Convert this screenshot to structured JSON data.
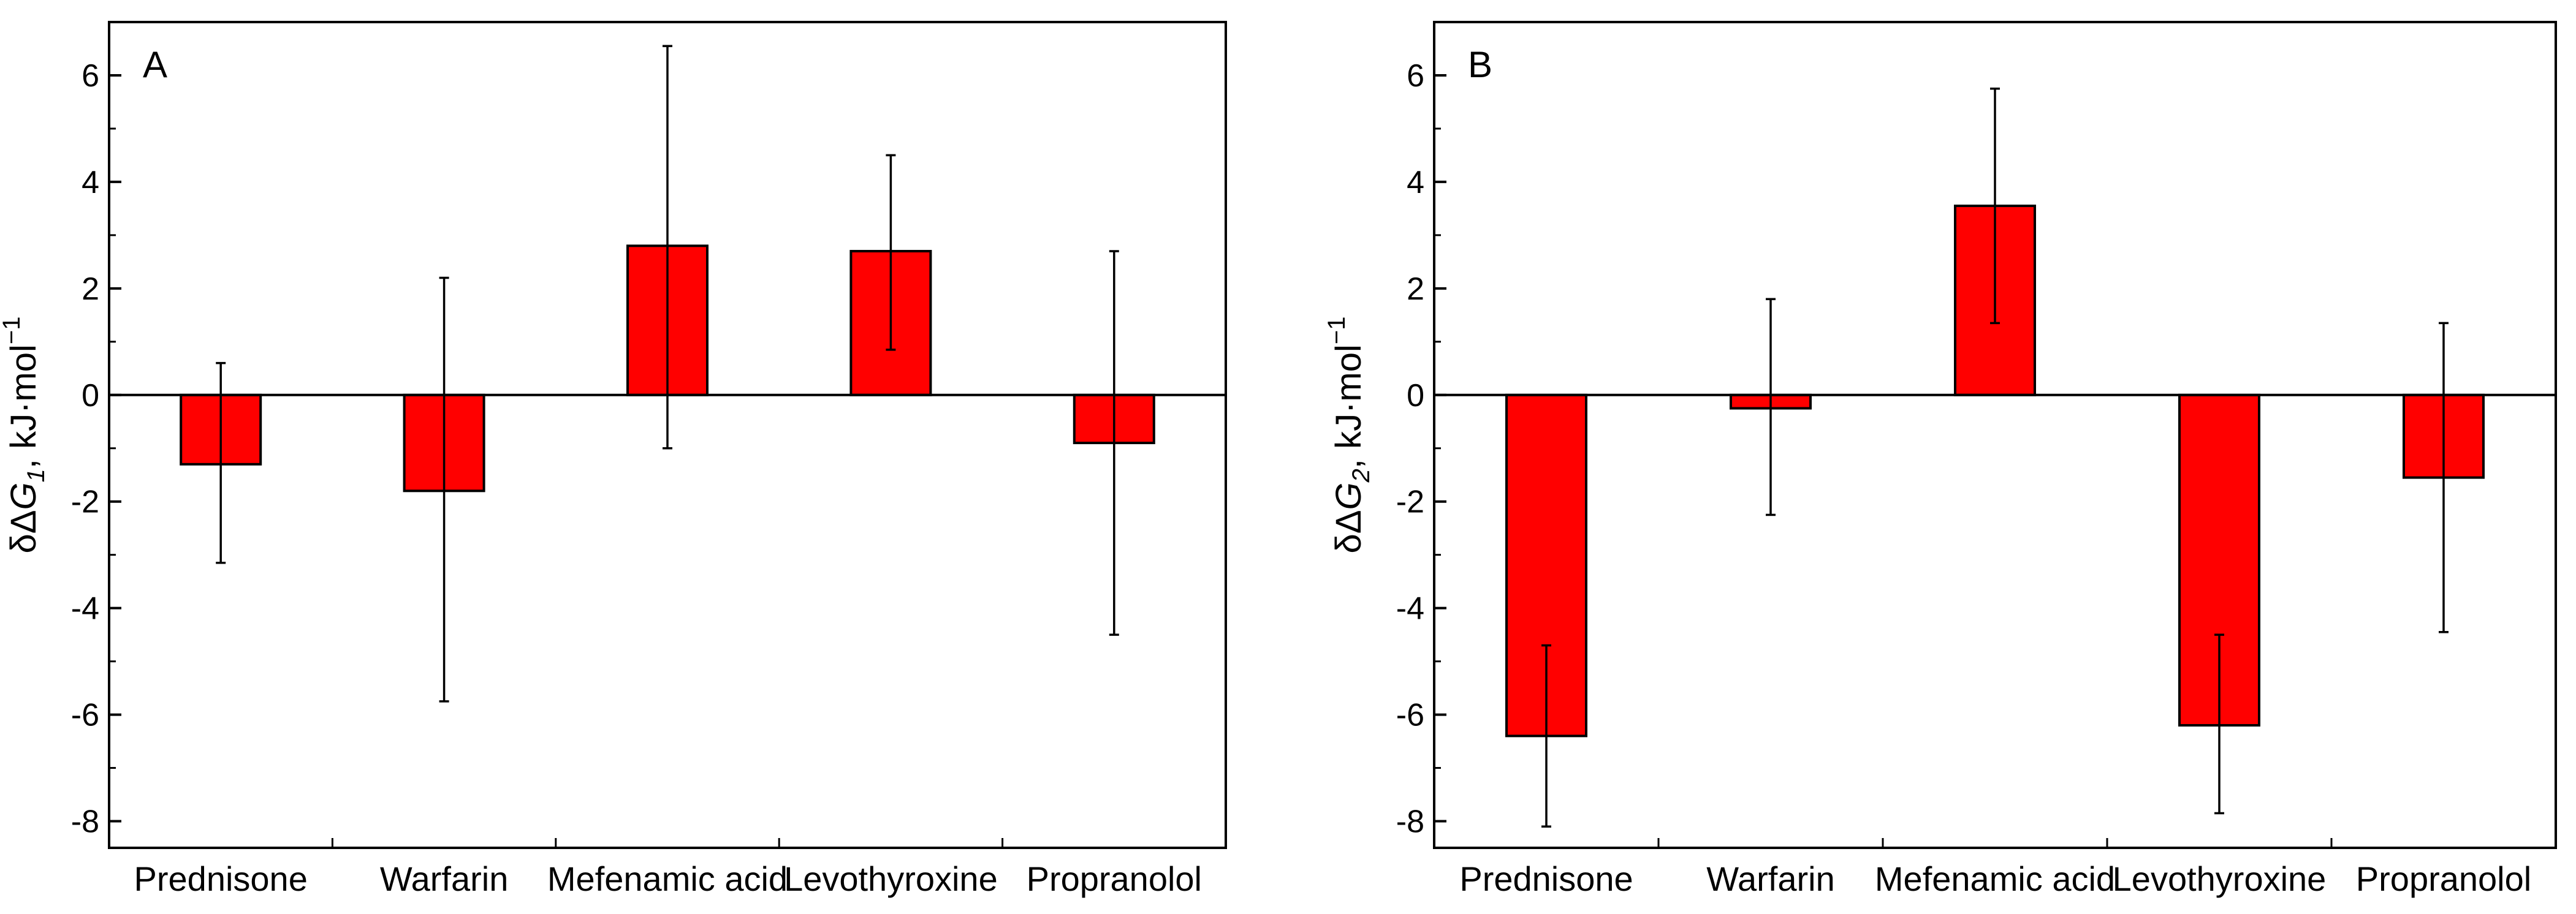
{
  "chart_data": [
    {
      "type": "bar",
      "panel_label": "A",
      "ylabel_prefix": "δΔ",
      "ylabel_symbol": "G",
      "ylabel_subscript": "1",
      "ylabel_unit": ", kJ·mol",
      "ylabel_superscript": "−1",
      "categories": [
        "Prednisone",
        "Warfarin",
        "Mefenamic acid",
        "Levothyroxine",
        "Propranolol"
      ],
      "values": [
        -1.3,
        -1.8,
        2.8,
        2.7,
        -0.9
      ],
      "error_low": [
        -3.15,
        -5.75,
        -1.0,
        0.85,
        -4.5
      ],
      "error_high": [
        0.6,
        2.2,
        6.55,
        4.5,
        2.7
      ],
      "ylim": [
        -8.5,
        7.0
      ],
      "yticks": [
        -8,
        -6,
        -4,
        -2,
        0,
        2,
        4,
        6
      ],
      "ytick_labels": [
        "-8",
        "-6",
        "-4",
        "-2",
        "0",
        "2",
        "4",
        "6"
      ],
      "bar_color": "#ff0000",
      "grid": false,
      "legend": "none"
    },
    {
      "type": "bar",
      "panel_label": "B",
      "ylabel_prefix": "δΔ",
      "ylabel_symbol": "G",
      "ylabel_subscript": "2",
      "ylabel_unit": ", kJ·mol",
      "ylabel_superscript": "−1",
      "categories": [
        "Prednisone",
        "Warfarin",
        "Mefenamic acid",
        "Levothyroxine",
        "Propranolol"
      ],
      "values": [
        -6.4,
        -0.25,
        3.55,
        -6.2,
        -1.55
      ],
      "error_low": [
        -8.1,
        -2.25,
        1.35,
        -7.85,
        -4.45
      ],
      "error_high": [
        -4.7,
        1.8,
        5.75,
        -4.5,
        1.35
      ],
      "ylim": [
        -8.5,
        7.0
      ],
      "yticks": [
        -8,
        -6,
        -4,
        -2,
        0,
        2,
        4,
        6
      ],
      "ytick_labels": [
        "-8",
        "-6",
        "-4",
        "-2",
        "0",
        "2",
        "4",
        "6"
      ],
      "bar_color": "#ff0000",
      "grid": false,
      "legend": "none"
    }
  ]
}
